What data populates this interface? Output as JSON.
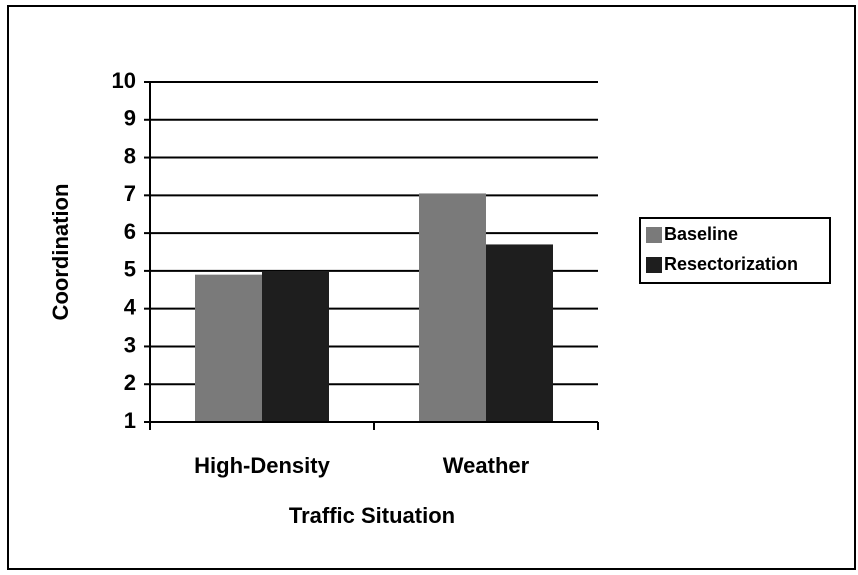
{
  "chart_data": {
    "type": "bar",
    "x_label": "Traffic Situation",
    "y_label": "Coordination",
    "categories": [
      "High-Density",
      "Weather"
    ],
    "series": [
      {
        "name": "Baseline",
        "color": "#7a7a7a",
        "values": [
          4.9,
          7.05
        ]
      },
      {
        "name": "Resectorization",
        "color": "#1e1e1e",
        "values": [
          5.0,
          5.7
        ]
      }
    ],
    "ylim": [
      1,
      10
    ],
    "yticks": [
      1,
      2,
      3,
      4,
      5,
      6,
      7,
      8,
      9,
      10
    ],
    "grid": true,
    "legend": "right"
  }
}
